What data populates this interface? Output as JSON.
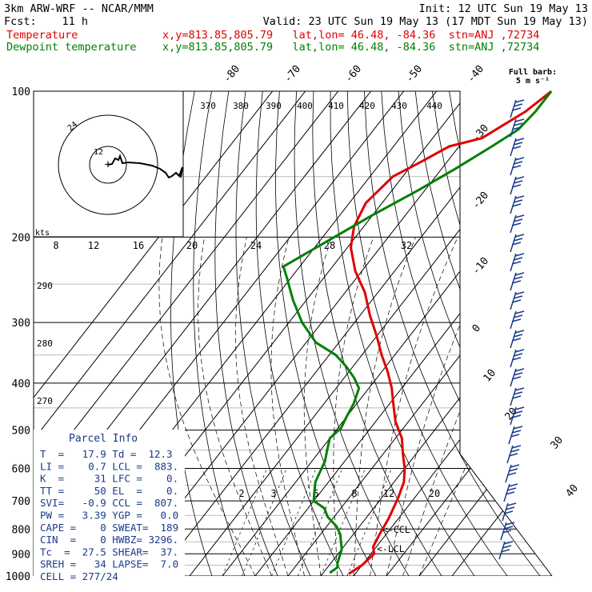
{
  "header": {
    "model": "3km ARW-WRF -- NCAR/MMM",
    "init": "Init: 12 UTC Sun 19 May 13",
    "fcst_label": "Fcst:",
    "fcst_value": "11 h",
    "valid": "Valid: 23 UTC Sun 19 May 13 (17 MDT Sun 19 May 13)",
    "temp_label": "Temperature",
    "dew_label": "Dewpoint temperature",
    "loc_temp": "x,y=813.85,805.79   lat,lon= 46.48, -84.36  stn=ANJ ,72734",
    "loc_dew": "x,y=813.85,805.79   lat,lon= 46.48, -84.36  stn=ANJ ,72734"
  },
  "wind_barb_legend": {
    "line1": "Full barb:",
    "line2": "5 m s⁻¹"
  },
  "hodograph": {
    "unit": "kts",
    "rings": [
      "12",
      "24"
    ]
  },
  "parcel_info": {
    "title": "Parcel Info",
    "rows": [
      "T  =   17.9 Td =  12.3",
      "LI =    0.7 LCL =  883.",
      "K  =     31 LFC =    0.",
      "TT =     50 EL  =    0.",
      "SVI=   -0.9 CCL =  807.",
      "PW =   3.39 YGP =   0.0",
      "CAPE =    0 SWEAT=  189",
      "CIN  =    0 HWBZ= 3296.",
      "Tc  =  27.5 SHEAR=  37.",
      "SREH =   34 LAPSE=  7.0",
      "CELL = 277/24"
    ]
  },
  "level_markers": {
    "ccl": "<-CCL",
    "lcl": "<-LCL"
  },
  "colors": {
    "temperature": "#e00000",
    "dewpoint": "#008000",
    "parcel_text": "#1a3a8a",
    "grid": "#000000"
  },
  "chart_data": {
    "type": "line",
    "title": "",
    "y_axis": {
      "label": "",
      "scale": "log-pressure",
      "range_hpa": [
        1000,
        100
      ],
      "ticks": [
        "100",
        "200",
        "300",
        "400",
        "500",
        "600",
        "700",
        "800",
        "900",
        "1000"
      ]
    },
    "x_axis_top_labels": [
      "-80",
      "-70",
      "-60",
      "-50",
      "-40"
    ],
    "isotherm_labels_right": [
      "-30",
      "-20",
      "-10",
      "0",
      "10",
      "20",
      "30",
      "40"
    ],
    "upper_axis_labels": [
      "8",
      "12",
      "16",
      "20",
      "24",
      "28",
      "32"
    ],
    "theta_labels": [
      "370",
      "380",
      "390",
      "400",
      "410",
      "420",
      "430",
      "440"
    ],
    "theta_side_labels": [
      "290",
      "280",
      "270"
    ],
    "mixing_ratio_labels": [
      "2",
      "3",
      "5",
      "8",
      "12",
      "20"
    ],
    "series": [
      {
        "name": "Temperature",
        "color": "#e00000",
        "points": [
          [
            18,
            990
          ],
          [
            20,
            950
          ],
          [
            21,
            900
          ],
          [
            19,
            870
          ],
          [
            18,
            820
          ],
          [
            17,
            760
          ],
          [
            15,
            690
          ],
          [
            13,
            640
          ],
          [
            10,
            600
          ],
          [
            6,
            560
          ],
          [
            2,
            520
          ],
          [
            -4,
            480
          ],
          [
            -9,
            440
          ],
          [
            -13,
            410
          ],
          [
            -18,
            380
          ],
          [
            -24,
            350
          ],
          [
            -30,
            320
          ],
          [
            -37,
            290
          ],
          [
            -44,
            260
          ],
          [
            -52,
            235
          ],
          [
            -59,
            210
          ],
          [
            -63,
            190
          ],
          [
            -65,
            170
          ],
          [
            -63,
            150
          ],
          [
            -58,
            140
          ],
          [
            -53,
            130
          ],
          [
            -45,
            125
          ],
          [
            -38,
            110
          ],
          [
            -35,
            100
          ]
        ]
      },
      {
        "name": "Dewpoint temperature",
        "color": "#008000",
        "points": [
          [
            12,
            985
          ],
          [
            13,
            960
          ],
          [
            12,
            940
          ],
          [
            11,
            910
          ],
          [
            10,
            880
          ],
          [
            8,
            850
          ],
          [
            6,
            820
          ],
          [
            3,
            790
          ],
          [
            -2,
            755
          ],
          [
            -5,
            725
          ],
          [
            -10,
            700
          ],
          [
            -12,
            670
          ],
          [
            -14,
            640
          ],
          [
            -15,
            610
          ],
          [
            -16,
            580
          ],
          [
            -18,
            550
          ],
          [
            -20,
            520
          ],
          [
            -19,
            495
          ],
          [
            -20,
            470
          ],
          [
            -21,
            440
          ],
          [
            -23,
            410
          ],
          [
            -27,
            390
          ],
          [
            -32,
            370
          ],
          [
            -38,
            350
          ],
          [
            -47,
            330
          ],
          [
            -56,
            300
          ],
          [
            -64,
            270
          ],
          [
            -72,
            240
          ],
          [
            -75,
            230
          ],
          [
            -68,
            205
          ],
          [
            -60,
            180
          ],
          [
            -52,
            160
          ],
          [
            -46,
            145
          ],
          [
            -40,
            130
          ],
          [
            -36,
            120
          ],
          [
            -35,
            110
          ],
          [
            -35,
            100
          ]
        ]
      }
    ],
    "grid": true
  }
}
